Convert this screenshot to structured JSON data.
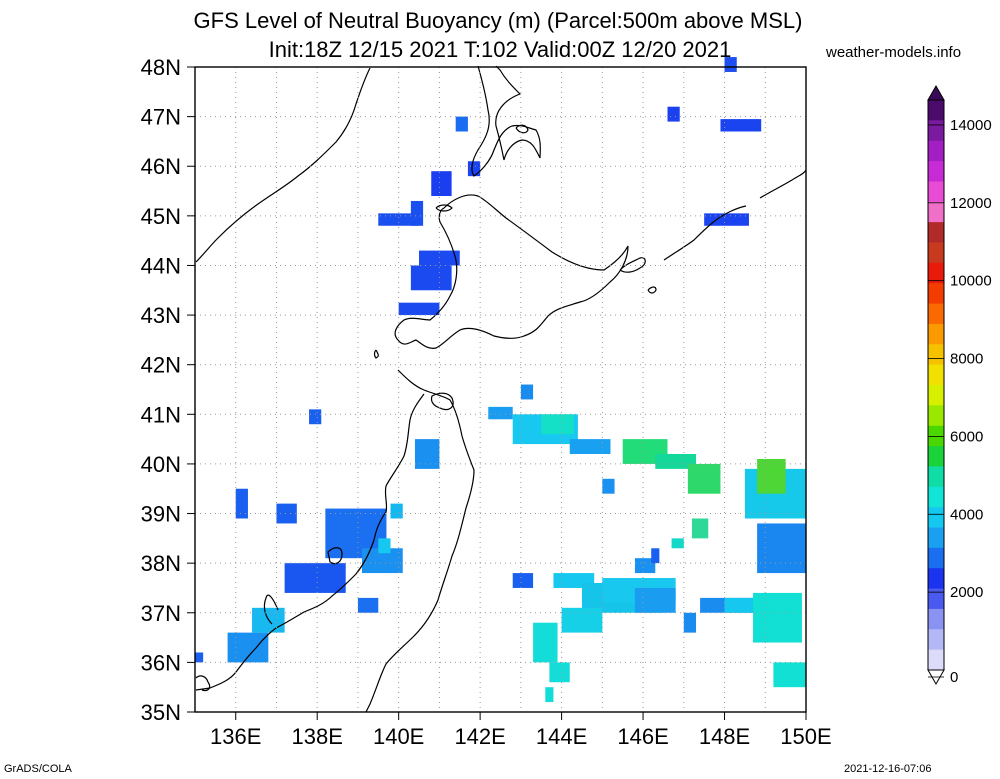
{
  "title_line1": "GFS Level of Neutral Buoyancy (m) (Parcel:500m above MSL)",
  "title_line2": "Init:18Z 12/15 2021 T:102 Valid:00Z 12/20 2021",
  "site": "weather-models.info",
  "footer_left": "GrADS/COLA",
  "footer_right": "2021-12-16-07:06",
  "map": {
    "lon_range": [
      135,
      150
    ],
    "lat_range": [
      35,
      48
    ],
    "lat_labels": [
      "48N",
      "47N",
      "46N",
      "45N",
      "44N",
      "43N",
      "42N",
      "41N",
      "40N",
      "39N",
      "38N",
      "37N",
      "36N",
      "35N"
    ],
    "lon_labels": [
      "136E",
      "138E",
      "140E",
      "142E",
      "144E",
      "146E",
      "148E",
      "150E"
    ],
    "gridlines": "dotted"
  },
  "colorbar": {
    "labels": [
      "14000",
      "12000",
      "10000",
      "8000",
      "6000",
      "4000",
      "2000",
      "0"
    ],
    "colors": [
      "#4b0b6b",
      "#7a1a9e",
      "#a21fc4",
      "#c72bd6",
      "#e84bd6",
      "#f070c8",
      "#b02a2a",
      "#c83a1e",
      "#e81a0a",
      "#f23c00",
      "#fa6a00",
      "#fb9a00",
      "#f6c200",
      "#f2e000",
      "#d6f000",
      "#9ae800",
      "#4ad800",
      "#1ad23a",
      "#10dca6",
      "#12e4d8",
      "#14c8f0",
      "#1aa0f0",
      "#1c6ef0",
      "#1a34f0",
      "#4a5af0",
      "#8a92f2",
      "#b4b8f6",
      "#dcdcfa"
    ]
  },
  "cells": [
    [
      148,
      47.9,
      0.3,
      0.3,
      "#1c4ef0"
    ],
    [
      141.4,
      46.7,
      0.3,
      0.3,
      "#1a6cf0"
    ],
    [
      146.6,
      46.9,
      0.3,
      0.3,
      "#1a40f0"
    ],
    [
      147.9,
      46.7,
      1.0,
      0.25,
      "#1a44f0"
    ],
    [
      141.7,
      45.8,
      0.3,
      0.3,
      "#1a44f0"
    ],
    [
      140.8,
      45.4,
      0.5,
      0.5,
      "#1a3ef0"
    ],
    [
      139.5,
      44.8,
      1.0,
      0.25,
      "#1a50f0"
    ],
    [
      140.3,
      44.8,
      0.3,
      0.5,
      "#1a50f0"
    ],
    [
      140.3,
      43.5,
      1.0,
      0.5,
      "#1a4af0"
    ],
    [
      140.5,
      44.0,
      1.0,
      0.3,
      "#1a4af0"
    ],
    [
      140.0,
      43.0,
      1.0,
      0.25,
      "#1a4af0"
    ],
    [
      147.5,
      44.8,
      1.1,
      0.25,
      "#1a44f0"
    ],
    [
      143.0,
      41.3,
      0.3,
      0.3,
      "#1a8cf0"
    ],
    [
      142.2,
      40.9,
      0.6,
      0.25,
      "#1a9cf0"
    ],
    [
      142.8,
      40.4,
      1.6,
      0.6,
      "#18c8f0"
    ],
    [
      143.5,
      40.6,
      0.8,
      0.4,
      "#14e0c8"
    ],
    [
      144.2,
      40.2,
      1.0,
      0.3,
      "#1aa0f0"
    ],
    [
      145.5,
      40.0,
      1.1,
      0.5,
      "#22dc7a"
    ],
    [
      146.3,
      39.9,
      1.0,
      0.3,
      "#14d89a"
    ],
    [
      147.1,
      39.4,
      0.8,
      0.6,
      "#2ed86a"
    ],
    [
      148.5,
      38.9,
      1.5,
      1.0,
      "#16c8ea"
    ],
    [
      148.8,
      39.4,
      0.7,
      0.7,
      "#4ed636"
    ],
    [
      148.8,
      37.8,
      1.2,
      1.0,
      "#1a86f0"
    ],
    [
      145.0,
      39.4,
      0.3,
      0.3,
      "#1a90f0"
    ],
    [
      140.4,
      39.9,
      0.6,
      0.6,
      "#1a90f0"
    ],
    [
      136.0,
      38.9,
      0.3,
      0.6,
      "#1a60f0"
    ],
    [
      137.0,
      38.8,
      0.5,
      0.4,
      "#1a60f0"
    ],
    [
      137.8,
      40.8,
      0.3,
      0.3,
      "#1a60f0"
    ],
    [
      138.2,
      38.1,
      1.5,
      1.0,
      "#1a70f0"
    ],
    [
      139.1,
      37.8,
      1.0,
      0.5,
      "#1a90f0"
    ],
    [
      137.2,
      37.4,
      1.5,
      0.6,
      "#1a56f0"
    ],
    [
      139.0,
      37.0,
      0.5,
      0.3,
      "#1a70f0"
    ],
    [
      139.5,
      38.2,
      0.3,
      0.3,
      "#14c8f0"
    ],
    [
      139.8,
      38.9,
      0.3,
      0.3,
      "#14b8f0"
    ],
    [
      135.8,
      36.0,
      1.0,
      0.6,
      "#1a90f0"
    ],
    [
      136.4,
      36.6,
      0.8,
      0.5,
      "#18b8f0"
    ],
    [
      135.0,
      36.0,
      0.2,
      0.2,
      "#1a60f0"
    ],
    [
      142.8,
      37.5,
      0.5,
      0.3,
      "#1a60f0"
    ],
    [
      143.8,
      37.5,
      1.0,
      0.3,
      "#16c8f0"
    ],
    [
      144.5,
      37.0,
      2.0,
      0.6,
      "#16c4ea"
    ],
    [
      145.0,
      37.2,
      1.8,
      0.5,
      "#18c8ee"
    ],
    [
      145.8,
      37.0,
      1.0,
      0.5,
      "#1a9cf0"
    ],
    [
      145.8,
      37.8,
      0.5,
      0.3,
      "#1a90f0"
    ],
    [
      146.2,
      38.0,
      0.2,
      0.3,
      "#1a60f0"
    ],
    [
      144.0,
      36.6,
      1.0,
      0.5,
      "#16d0e8"
    ],
    [
      143.3,
      36.0,
      0.6,
      0.8,
      "#14dcd8"
    ],
    [
      143.7,
      35.6,
      0.5,
      0.4,
      "#14dcd8"
    ],
    [
      143.6,
      35.2,
      0.2,
      0.3,
      "#14dcd8"
    ],
    [
      147.4,
      37.0,
      1.5,
      0.3,
      "#1a8cf0"
    ],
    [
      147.0,
      36.6,
      0.3,
      0.4,
      "#1a8cf0"
    ],
    [
      148.0,
      37.0,
      1.5,
      0.3,
      "#16c8f0"
    ],
    [
      148.7,
      36.4,
      1.2,
      1.0,
      "#12e0d4"
    ],
    [
      149.2,
      35.5,
      0.8,
      0.5,
      "#12e0d4"
    ],
    [
      147.2,
      38.5,
      0.4,
      0.4,
      "#2ed896"
    ],
    [
      146.7,
      38.3,
      0.3,
      0.2,
      "#14d8c8"
    ]
  ]
}
